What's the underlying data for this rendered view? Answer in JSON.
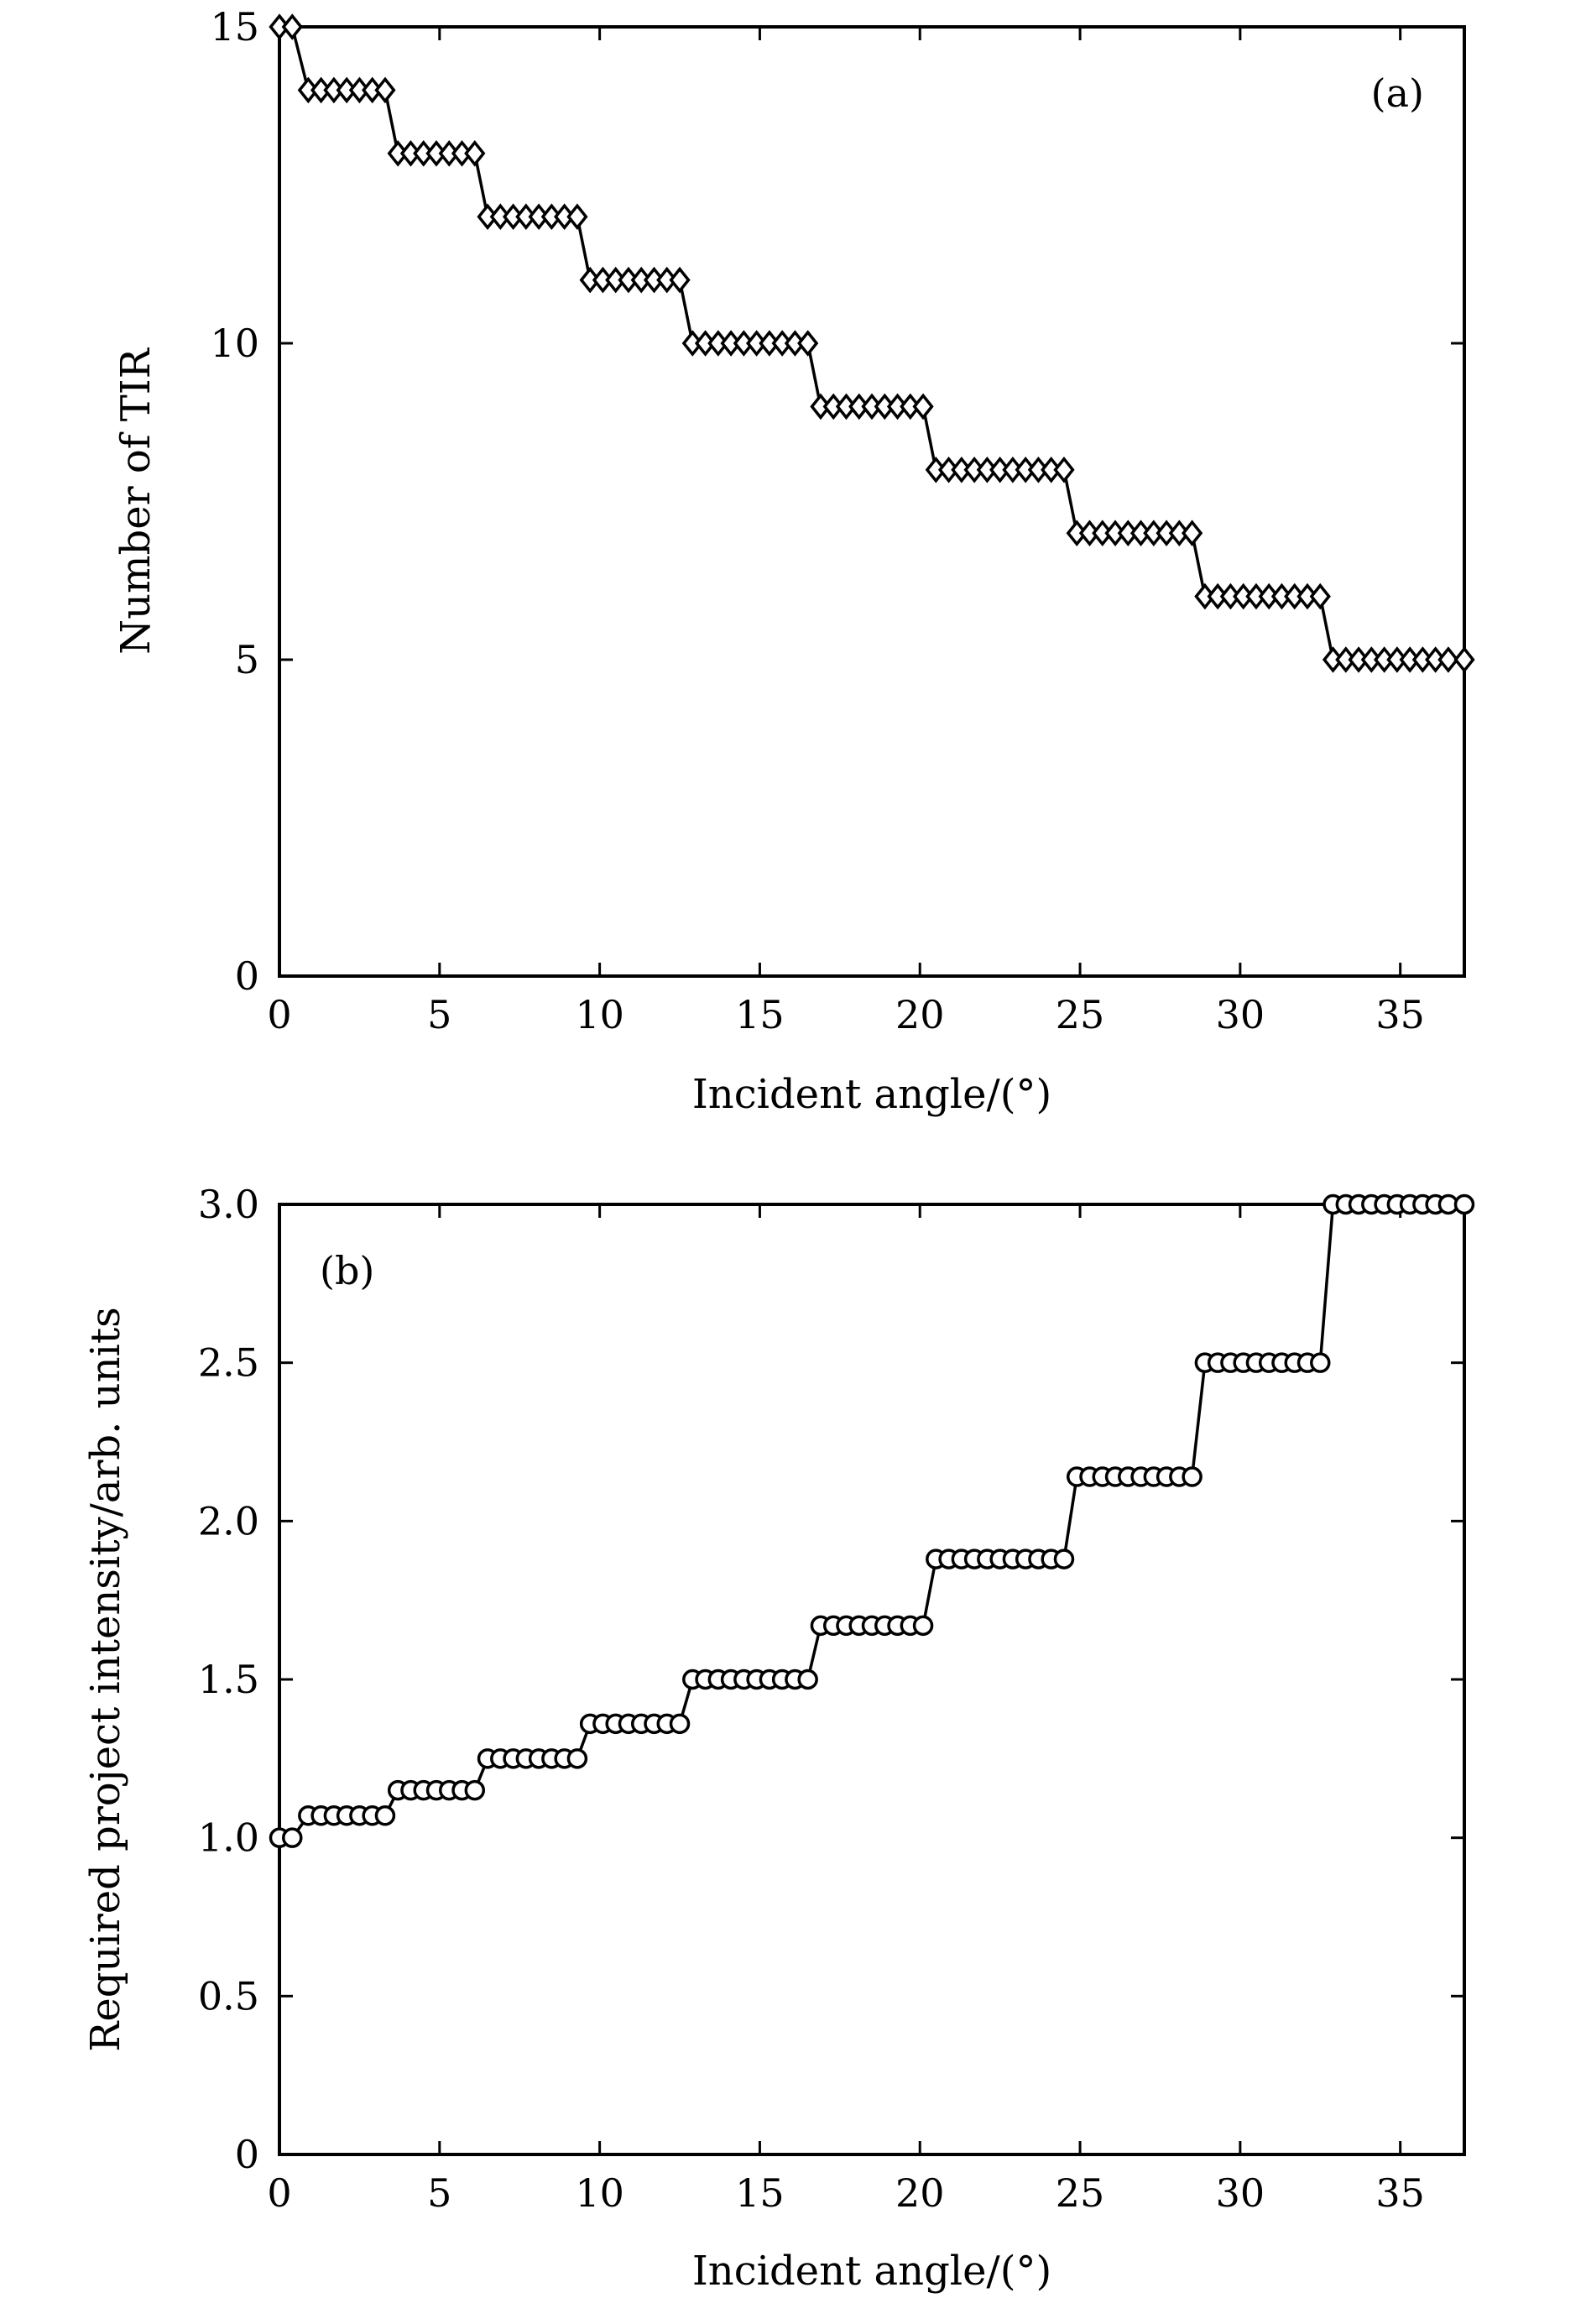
{
  "page": {
    "background": "#ffffff",
    "ink_color": "#000000"
  },
  "chart_data": [
    {
      "type": "line",
      "panel_label": "(a)",
      "title": "",
      "xlabel": "Incident angle/(°)",
      "ylabel": "Number of TIR",
      "xlim": [
        0,
        37
      ],
      "ylim": [
        0,
        15
      ],
      "xticks": [
        0,
        5,
        10,
        15,
        20,
        25,
        30,
        35
      ],
      "yticks": [
        0,
        5,
        10,
        15
      ],
      "xtick_labels": [
        "0",
        "5",
        "10",
        "15",
        "20",
        "25",
        "30",
        "35"
      ],
      "ytick_labels": [
        "0",
        "5",
        "10",
        "15"
      ],
      "marker": "diamond",
      "grid": false,
      "series": [
        {
          "name": "Number of TIR",
          "x": [
            0,
            0.4,
            0.9,
            1.3,
            1.7,
            2.1,
            2.5,
            2.9,
            3.3,
            3.7,
            4.1,
            4.5,
            4.9,
            5.3,
            5.7,
            6.1,
            6.5,
            6.9,
            7.3,
            7.7,
            8.1,
            8.5,
            8.9,
            9.3,
            9.7,
            10.1,
            10.5,
            10.9,
            11.3,
            11.7,
            12.1,
            12.5,
            12.9,
            13.3,
            13.7,
            14.1,
            14.5,
            14.9,
            15.3,
            15.7,
            16.1,
            16.5,
            16.9,
            17.3,
            17.7,
            18.1,
            18.5,
            18.9,
            19.3,
            19.7,
            20.1,
            20.5,
            20.9,
            21.3,
            21.7,
            22.1,
            22.5,
            22.9,
            23.3,
            23.7,
            24.1,
            24.5,
            24.9,
            25.3,
            25.7,
            26.1,
            26.5,
            26.9,
            27.3,
            27.7,
            28.1,
            28.5,
            28.9,
            29.3,
            29.7,
            30.1,
            30.5,
            30.9,
            31.3,
            31.7,
            32.1,
            32.5,
            32.9,
            33.3,
            33.7,
            34.1,
            34.5,
            34.9,
            35.3,
            35.7,
            36.1,
            36.5,
            37
          ],
          "y": [
            15,
            15,
            14,
            14,
            14,
            14,
            14,
            14,
            14,
            13,
            13,
            13,
            13,
            13,
            13,
            13,
            12,
            12,
            12,
            12,
            12,
            12,
            12,
            12,
            11,
            11,
            11,
            11,
            11,
            11,
            11,
            11,
            10,
            10,
            10,
            10,
            10,
            10,
            10,
            10,
            10,
            10,
            9,
            9,
            9,
            9,
            9,
            9,
            9,
            9,
            9,
            8,
            8,
            8,
            8,
            8,
            8,
            8,
            8,
            8,
            8,
            8,
            7,
            7,
            7,
            7,
            7,
            7,
            7,
            7,
            7,
            7,
            6,
            6,
            6,
            6,
            6,
            6,
            6,
            6,
            6,
            6,
            5,
            5,
            5,
            5,
            5,
            5,
            5,
            5,
            5,
            5,
            5
          ]
        }
      ]
    },
    {
      "type": "line",
      "panel_label": "(b)",
      "title": "",
      "xlabel": "Incident angle/(°)",
      "ylabel": "Required project intensity/arb. units",
      "xlim": [
        0,
        37
      ],
      "ylim": [
        0,
        3
      ],
      "xticks": [
        0,
        5,
        10,
        15,
        20,
        25,
        30,
        35
      ],
      "yticks": [
        0,
        0.5,
        1.0,
        1.5,
        2.0,
        2.5,
        3.0
      ],
      "xtick_labels": [
        "0",
        "5",
        "10",
        "15",
        "20",
        "25",
        "30",
        "35"
      ],
      "ytick_labels": [
        "0",
        "0.5",
        "1.0",
        "1.5",
        "2.0",
        "2.5",
        "3.0"
      ],
      "marker": "circle",
      "grid": false,
      "series": [
        {
          "name": "Required project intensity",
          "x": [
            0,
            0.4,
            0.9,
            1.3,
            1.7,
            2.1,
            2.5,
            2.9,
            3.3,
            3.7,
            4.1,
            4.5,
            4.9,
            5.3,
            5.7,
            6.1,
            6.5,
            6.9,
            7.3,
            7.7,
            8.1,
            8.5,
            8.9,
            9.3,
            9.7,
            10.1,
            10.5,
            10.9,
            11.3,
            11.7,
            12.1,
            12.5,
            12.9,
            13.3,
            13.7,
            14.1,
            14.5,
            14.9,
            15.3,
            15.7,
            16.1,
            16.5,
            16.9,
            17.3,
            17.7,
            18.1,
            18.5,
            18.9,
            19.3,
            19.7,
            20.1,
            20.5,
            20.9,
            21.3,
            21.7,
            22.1,
            22.5,
            22.9,
            23.3,
            23.7,
            24.1,
            24.5,
            24.9,
            25.3,
            25.7,
            26.1,
            26.5,
            26.9,
            27.3,
            27.7,
            28.1,
            28.5,
            28.9,
            29.3,
            29.7,
            30.1,
            30.5,
            30.9,
            31.3,
            31.7,
            32.1,
            32.5,
            32.9,
            33.3,
            33.7,
            34.1,
            34.5,
            34.9,
            35.3,
            35.7,
            36.1,
            36.5,
            37
          ],
          "y": [
            1.0,
            1.0,
            1.07,
            1.07,
            1.07,
            1.07,
            1.07,
            1.07,
            1.07,
            1.15,
            1.15,
            1.15,
            1.15,
            1.15,
            1.15,
            1.15,
            1.25,
            1.25,
            1.25,
            1.25,
            1.25,
            1.25,
            1.25,
            1.25,
            1.36,
            1.36,
            1.36,
            1.36,
            1.36,
            1.36,
            1.36,
            1.36,
            1.5,
            1.5,
            1.5,
            1.5,
            1.5,
            1.5,
            1.5,
            1.5,
            1.5,
            1.5,
            1.67,
            1.67,
            1.67,
            1.67,
            1.67,
            1.67,
            1.67,
            1.67,
            1.67,
            1.88,
            1.88,
            1.88,
            1.88,
            1.88,
            1.88,
            1.88,
            1.88,
            1.88,
            1.88,
            1.88,
            2.14,
            2.14,
            2.14,
            2.14,
            2.14,
            2.14,
            2.14,
            2.14,
            2.14,
            2.14,
            2.5,
            2.5,
            2.5,
            2.5,
            2.5,
            2.5,
            2.5,
            2.5,
            2.5,
            2.5,
            3.0,
            3.0,
            3.0,
            3.0,
            3.0,
            3.0,
            3.0,
            3.0,
            3.0,
            3.0,
            3.0
          ]
        }
      ]
    }
  ]
}
